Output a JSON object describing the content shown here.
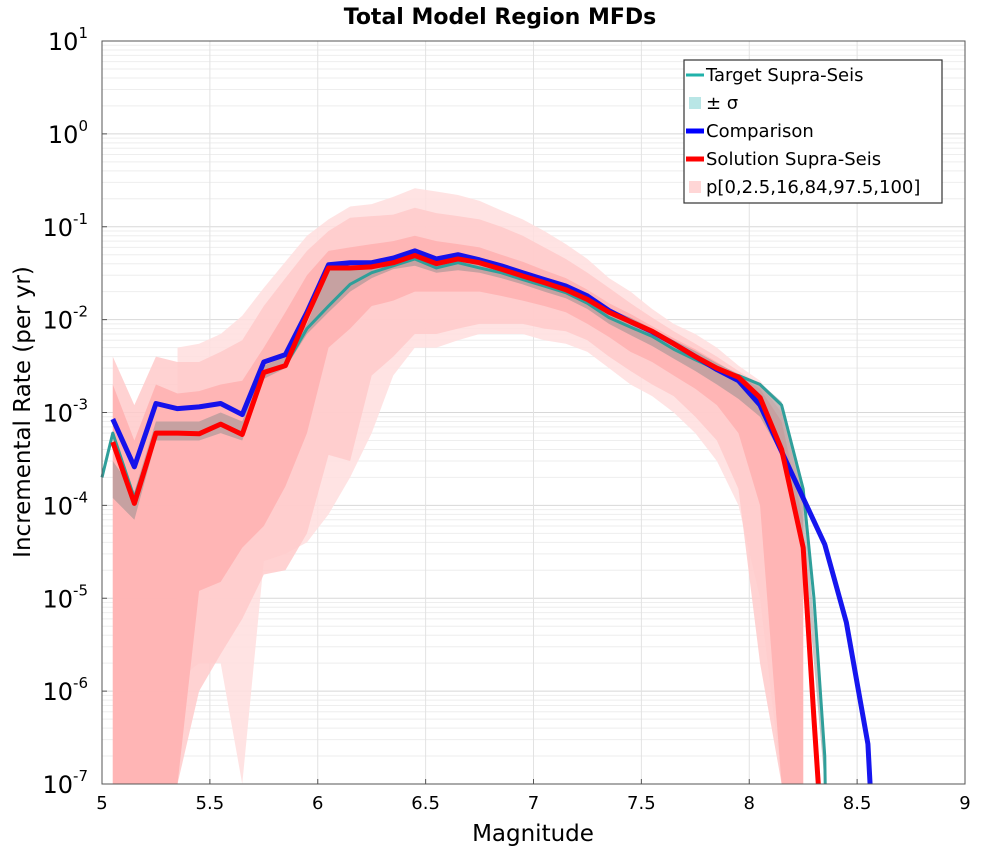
{
  "chart_data": {
    "type": "line",
    "title": "Total Model Region MFDs",
    "xlabel": "Magnitude",
    "ylabel": "Incremental Rate (per yr)",
    "xlim": [
      5,
      9
    ],
    "ylim": [
      1e-07,
      10
    ],
    "yscale": "log",
    "grid": true,
    "legend_position": "top-right",
    "x_ticks": [
      "5",
      "5.5",
      "6",
      "6.5",
      "7",
      "7.5",
      "8",
      "8.5",
      "9"
    ],
    "y_ticks": [
      {
        "base": "10",
        "exp": "1"
      },
      {
        "base": "10",
        "exp": "0"
      },
      {
        "base": "10",
        "exp": "-1"
      },
      {
        "base": "10",
        "exp": "-2"
      },
      {
        "base": "10",
        "exp": "-3"
      },
      {
        "base": "10",
        "exp": "-4"
      },
      {
        "base": "10",
        "exp": "-5"
      },
      {
        "base": "10",
        "exp": "-6"
      },
      {
        "base": "10",
        "exp": "-7"
      }
    ],
    "legend": [
      {
        "label": "Target Supra-Seis",
        "color": "#20b2aa",
        "kind": "line"
      },
      {
        "label": "± σ",
        "color": "#b9e6e6",
        "kind": "square"
      },
      {
        "label": "Comparison",
        "color": "#0000ff",
        "kind": "line"
      },
      {
        "label": "Solution Supra-Seis",
        "color": "#ff0000",
        "kind": "line"
      },
      {
        "label": "p[0,2.5,16,84,97.5,100]",
        "color": "#ffd6d6",
        "kind": "square"
      }
    ],
    "x": [
      5.05,
      5.15,
      5.25,
      5.35,
      5.45,
      5.55,
      5.65,
      5.75,
      5.85,
      5.95,
      6.05,
      6.15,
      6.25,
      6.35,
      6.45,
      6.55,
      6.65,
      6.75,
      6.85,
      6.95,
      7.05,
      7.15,
      7.25,
      7.35,
      7.45,
      7.55,
      7.65,
      7.75,
      7.85,
      7.95,
      8.05,
      8.15,
      8.25,
      8.35,
      8.45,
      8.55
    ],
    "bands": [
      {
        "name": "p0-p100",
        "color": "#ffdede",
        "lower": [
          null,
          null,
          null,
          1.3e-06,
          2e-06,
          2e-06,
          1e-07,
          2.5e-05,
          3e-05,
          4e-05,
          8e-05,
          0.0002,
          0.0006,
          0.0025,
          0.005,
          0.005,
          0.006,
          0.007,
          0.007,
          0.007,
          0.006,
          0.0055,
          0.0045,
          0.003,
          0.002,
          0.0015,
          0.001,
          0.0006,
          0.0003,
          0.0001,
          1e-05,
          1e-07,
          1e-07,
          null,
          null,
          null
        ],
        "upper": [
          0.006,
          0.0018,
          0.0055,
          0.005,
          0.0055,
          0.007,
          0.011,
          0.022,
          0.042,
          0.08,
          0.12,
          0.165,
          0.175,
          0.21,
          0.26,
          0.24,
          0.22,
          0.19,
          0.15,
          0.12,
          0.09,
          0.065,
          0.045,
          0.028,
          0.02,
          0.013,
          0.009,
          0.007,
          0.005,
          0.0032,
          0.0022,
          0.0011,
          0.00015,
          null,
          null,
          null
        ]
      },
      {
        "name": "p2.5-p97.5",
        "color": "#ffcaca",
        "lower": [
          1e-07,
          1e-07,
          1e-07,
          1e-07,
          1e-06,
          2.5e-06,
          6e-06,
          1.8e-05,
          2e-05,
          5e-05,
          0.00035,
          0.0003,
          0.0025,
          0.004,
          0.007,
          0.007,
          0.008,
          0.009,
          0.009,
          0.009,
          0.008,
          0.0075,
          0.006,
          0.004,
          0.0028,
          0.002,
          0.0015,
          0.0009,
          0.0005,
          0.00015,
          2e-06,
          1e-07,
          1e-07,
          null,
          null,
          null
        ],
        "upper": [
          0.004,
          0.0012,
          0.004,
          0.0035,
          0.0035,
          0.0045,
          0.006,
          0.014,
          0.028,
          0.055,
          0.09,
          0.125,
          0.13,
          0.135,
          0.16,
          0.14,
          0.13,
          0.12,
          0.1,
          0.08,
          0.06,
          0.045,
          0.032,
          0.022,
          0.015,
          0.0105,
          0.0075,
          0.0055,
          0.004,
          0.0028,
          0.002,
          0.001,
          0.00012,
          null,
          null,
          null
        ]
      },
      {
        "name": "p16-p84",
        "color": "#ffb0b0",
        "lower": [
          1e-07,
          1e-07,
          1e-07,
          1e-07,
          1.2e-05,
          1.5e-05,
          3.5e-05,
          6e-05,
          0.00016,
          0.0006,
          0.005,
          0.008,
          0.014,
          0.016,
          0.02,
          0.02,
          0.02,
          0.02,
          0.018,
          0.016,
          0.014,
          0.012,
          0.009,
          0.0065,
          0.0045,
          0.0035,
          0.0025,
          0.0018,
          0.0012,
          0.0006,
          0.0001,
          1e-07,
          1e-07,
          null,
          null,
          null
        ],
        "upper": [
          0.002,
          0.0005,
          0.002,
          0.0016,
          0.0017,
          0.002,
          0.0022,
          0.005,
          0.012,
          0.03,
          0.055,
          0.06,
          0.065,
          0.07,
          0.08,
          0.07,
          0.065,
          0.06,
          0.05,
          0.042,
          0.034,
          0.028,
          0.021,
          0.015,
          0.0115,
          0.0085,
          0.0063,
          0.0048,
          0.0035,
          0.0025,
          0.0018,
          0.0008,
          7e-05,
          null,
          null,
          null
        ]
      },
      {
        "name": "± σ",
        "color": "#8e8e8e",
        "lower": [
          0.00012,
          7e-05,
          0.0005,
          0.0005,
          0.0005,
          0.0006,
          0.0005,
          0.0023,
          0.003,
          0.007,
          0.012,
          0.02,
          0.028,
          0.035,
          0.038,
          0.032,
          0.034,
          0.032,
          0.028,
          0.024,
          0.02,
          0.017,
          0.013,
          0.009,
          0.0068,
          0.0052,
          0.0038,
          0.0028,
          0.002,
          0.0014,
          0.0009,
          0.00035,
          4e-05,
          1e-07,
          null,
          null
        ],
        "upper": [
          0.0003,
          0.00014,
          0.0008,
          0.0008,
          0.0008,
          0.001,
          0.0008,
          0.0032,
          0.004,
          0.009,
          0.034,
          0.036,
          0.039,
          0.045,
          0.052,
          0.043,
          0.047,
          0.044,
          0.038,
          0.033,
          0.028,
          0.024,
          0.019,
          0.013,
          0.0105,
          0.008,
          0.006,
          0.0046,
          0.0034,
          0.0026,
          0.0021,
          0.0013,
          0.00016,
          2e-07,
          null,
          null
        ]
      }
    ],
    "series": [
      {
        "name": "Target Supra-Seis",
        "color": "#2f9f9a",
        "width": 3,
        "points": [
          [
            5.0,
            0.0002
          ],
          [
            5.05,
            0.0006
          ],
          [
            5.15,
            0.00012
          ],
          [
            5.25,
            0.0006
          ],
          [
            5.35,
            0.0006
          ],
          [
            5.45,
            0.0006
          ],
          [
            5.55,
            0.00075
          ],
          [
            5.65,
            0.0006
          ],
          [
            5.75,
            0.0027
          ],
          [
            5.85,
            0.0032
          ],
          [
            5.95,
            0.008
          ],
          [
            6.05,
            0.014
          ],
          [
            6.15,
            0.024
          ],
          [
            6.25,
            0.032
          ],
          [
            6.35,
            0.038
          ],
          [
            6.45,
            0.045
          ],
          [
            6.55,
            0.036
          ],
          [
            6.65,
            0.041
          ],
          [
            6.75,
            0.036
          ],
          [
            6.85,
            0.032
          ],
          [
            6.95,
            0.027
          ],
          [
            7.05,
            0.023
          ],
          [
            7.15,
            0.0195
          ],
          [
            7.25,
            0.015
          ],
          [
            7.35,
            0.0105
          ],
          [
            7.45,
            0.0083
          ],
          [
            7.55,
            0.0066
          ],
          [
            7.65,
            0.0048
          ],
          [
            7.75,
            0.0037
          ],
          [
            7.85,
            0.0029
          ],
          [
            7.95,
            0.0025
          ],
          [
            8.05,
            0.002
          ],
          [
            8.15,
            0.0012
          ],
          [
            8.25,
            0.00015
          ],
          [
            8.3,
            1e-05
          ],
          [
            8.35,
            2e-07
          ],
          [
            8.352,
            1e-07
          ]
        ]
      },
      {
        "name": "Comparison",
        "color": "#0a0aee",
        "width": 5,
        "points": [
          [
            5.05,
            0.00085
          ],
          [
            5.15,
            0.00026
          ],
          [
            5.25,
            0.00125
          ],
          [
            5.35,
            0.0011
          ],
          [
            5.45,
            0.00115
          ],
          [
            5.55,
            0.00125
          ],
          [
            5.65,
            0.00095
          ],
          [
            5.75,
            0.0035
          ],
          [
            5.85,
            0.0042
          ],
          [
            5.95,
            0.012
          ],
          [
            6.05,
            0.039
          ],
          [
            6.15,
            0.041
          ],
          [
            6.25,
            0.041
          ],
          [
            6.35,
            0.046
          ],
          [
            6.45,
            0.055
          ],
          [
            6.55,
            0.045
          ],
          [
            6.65,
            0.05
          ],
          [
            6.75,
            0.044
          ],
          [
            6.85,
            0.038
          ],
          [
            6.95,
            0.032
          ],
          [
            7.05,
            0.027
          ],
          [
            7.15,
            0.023
          ],
          [
            7.25,
            0.018
          ],
          [
            7.35,
            0.0125
          ],
          [
            7.45,
            0.0095
          ],
          [
            7.55,
            0.0074
          ],
          [
            7.65,
            0.0055
          ],
          [
            7.75,
            0.004
          ],
          [
            7.85,
            0.0029
          ],
          [
            7.95,
            0.0022
          ],
          [
            8.05,
            0.0012
          ],
          [
            8.15,
            0.00038
          ],
          [
            8.25,
            0.00012
          ],
          [
            8.35,
            3.8e-05
          ],
          [
            8.45,
            5.5e-06
          ],
          [
            8.55,
            2.7e-07
          ],
          [
            8.56,
            1e-07
          ]
        ]
      },
      {
        "name": "Solution Supra-Seis",
        "color": "#ff0000",
        "width": 5,
        "points": [
          [
            5.05,
            0.00048
          ],
          [
            5.15,
            0.000105
          ],
          [
            5.25,
            0.0006
          ],
          [
            5.35,
            0.0006
          ],
          [
            5.45,
            0.00059
          ],
          [
            5.55,
            0.00075
          ],
          [
            5.65,
            0.00058
          ],
          [
            5.75,
            0.0027
          ],
          [
            5.85,
            0.0032
          ],
          [
            5.95,
            0.011
          ],
          [
            6.05,
            0.036
          ],
          [
            6.15,
            0.036
          ],
          [
            6.25,
            0.037
          ],
          [
            6.35,
            0.041
          ],
          [
            6.45,
            0.049
          ],
          [
            6.55,
            0.04
          ],
          [
            6.65,
            0.045
          ],
          [
            6.75,
            0.041
          ],
          [
            6.85,
            0.035
          ],
          [
            6.95,
            0.0295
          ],
          [
            7.05,
            0.025
          ],
          [
            7.15,
            0.021
          ],
          [
            7.25,
            0.0165
          ],
          [
            7.35,
            0.012
          ],
          [
            7.45,
            0.0095
          ],
          [
            7.55,
            0.0075
          ],
          [
            7.65,
            0.0055
          ],
          [
            7.75,
            0.004
          ],
          [
            7.85,
            0.003
          ],
          [
            7.95,
            0.0024
          ],
          [
            8.05,
            0.00145
          ],
          [
            8.15,
            0.0004
          ],
          [
            8.25,
            3.5e-05
          ],
          [
            8.3,
            5e-07
          ],
          [
            8.32,
            1e-07
          ]
        ]
      }
    ]
  }
}
